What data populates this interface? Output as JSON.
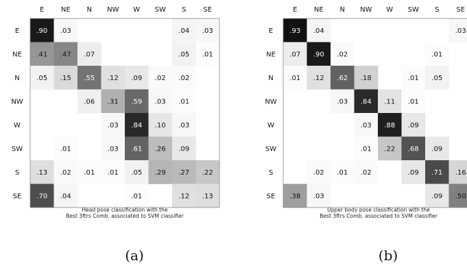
{
  "chart_data": [
    {
      "type": "heatmap",
      "panel_label": "(a)",
      "caption": [
        "Head pose classification with the",
        "Best 3ftrs Comb. associated to SVM classifier"
      ],
      "x_labels": [
        "E",
        "NE",
        "N",
        "NW",
        "W",
        "SW",
        "S",
        "SE"
      ],
      "y_labels": [
        "E",
        "NE",
        "N",
        "NW",
        "W",
        "SW",
        "S",
        "SE"
      ],
      "values": [
        [
          0.9,
          0.03,
          null,
          null,
          null,
          null,
          0.04,
          0.03
        ],
        [
          0.41,
          0.47,
          0.07,
          null,
          null,
          null,
          0.05,
          0.01
        ],
        [
          0.05,
          0.15,
          0.55,
          0.12,
          0.09,
          0.02,
          0.02,
          null
        ],
        [
          null,
          null,
          0.06,
          0.31,
          0.59,
          0.03,
          0.01,
          null
        ],
        [
          null,
          null,
          null,
          0.03,
          0.84,
          0.1,
          0.03,
          null
        ],
        [
          null,
          0.01,
          null,
          0.03,
          0.61,
          0.26,
          0.09,
          null
        ],
        [
          0.13,
          0.02,
          0.01,
          0.01,
          0.05,
          0.29,
          0.27,
          0.22
        ],
        [
          0.7,
          0.04,
          null,
          null,
          0.01,
          null,
          0.12,
          0.13
        ]
      ]
    },
    {
      "type": "heatmap",
      "panel_label": "(b)",
      "caption": [
        "Upper body pose classification with the",
        "Best 3ftrs Comb. associated to SVM classifier"
      ],
      "x_labels": [
        "E",
        "NE",
        "N",
        "NW",
        "W",
        "SW",
        "S",
        "SE"
      ],
      "y_labels": [
        "E",
        "NE",
        "N",
        "NW",
        "W",
        "SW",
        "S",
        "SE"
      ],
      "values": [
        [
          0.93,
          0.04,
          null,
          null,
          null,
          null,
          null,
          0.03
        ],
        [
          0.07,
          0.9,
          0.02,
          null,
          null,
          null,
          0.01,
          null
        ],
        [
          0.01,
          0.12,
          0.62,
          0.18,
          null,
          0.01,
          0.05,
          null
        ],
        [
          null,
          null,
          0.03,
          0.84,
          0.11,
          0.01,
          null,
          null
        ],
        [
          null,
          null,
          null,
          0.03,
          0.88,
          0.09,
          null,
          null
        ],
        [
          null,
          null,
          null,
          0.01,
          0.22,
          0.68,
          0.09,
          null
        ],
        [
          null,
          0.02,
          0.01,
          0.02,
          null,
          0.09,
          0.71,
          0.16
        ],
        [
          0.38,
          0.03,
          null,
          null,
          null,
          null,
          0.09,
          0.5
        ]
      ]
    }
  ]
}
